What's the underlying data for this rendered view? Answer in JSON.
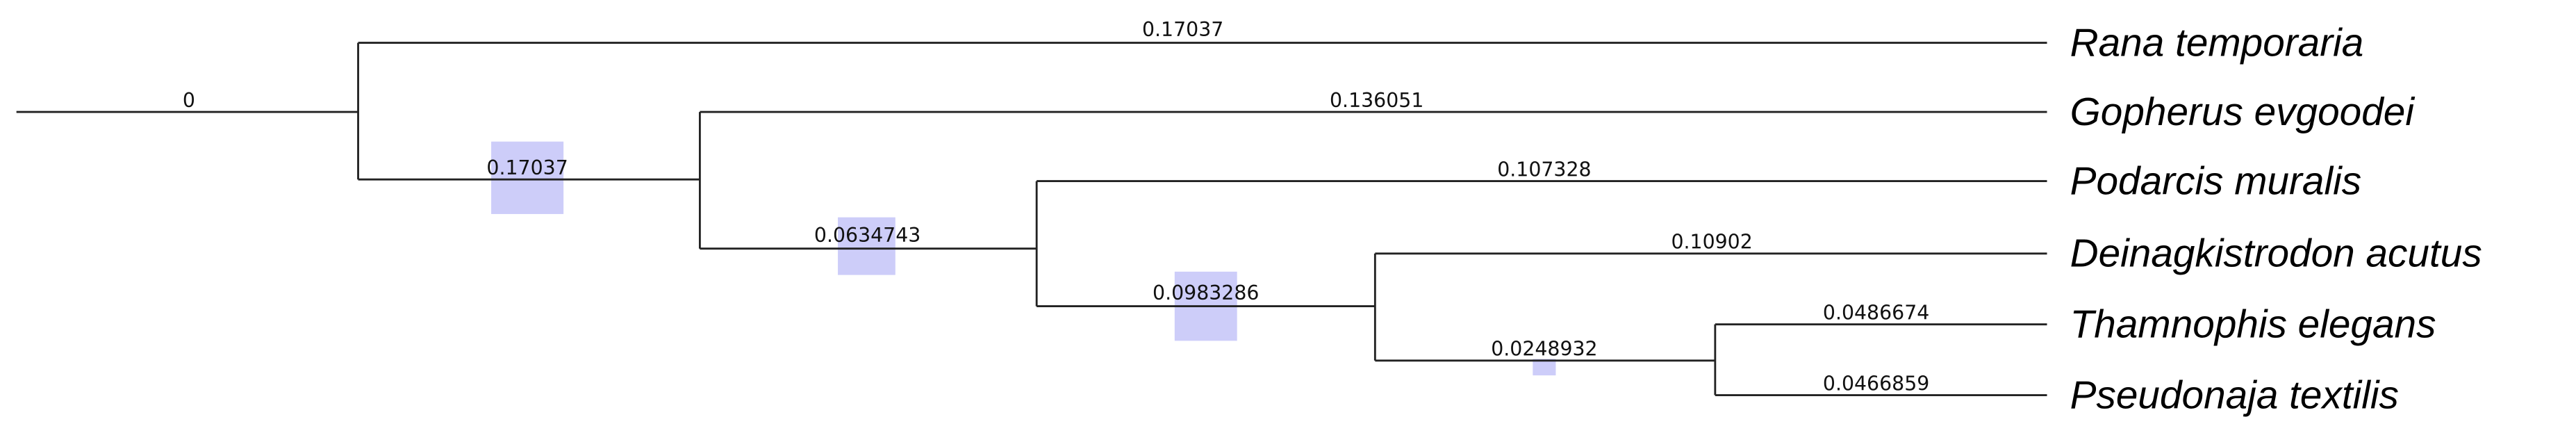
{
  "tree": {
    "taxa": [
      "Rana temporaria",
      "Gopherus evgoodei",
      "Podarcis muralis",
      "Deinagkistrodon acutus",
      "Thamnophis elegans",
      "Pseudonaja textilis"
    ],
    "branch_labels": {
      "root": "0",
      "rana": "0.17037",
      "clade_squamata_testudines": "0.17037",
      "gopherus": "0.136051",
      "clade_squamata": "0.0634743",
      "podarcis": "0.107328",
      "clade_serpentes": "0.0983286",
      "deinagkistrodon": "0.10902",
      "clade_colubroid": "0.0248932",
      "thamnophis": "0.0486674",
      "pseudonaja": "0.0466859"
    },
    "node_bar_color": "#c8c8f8",
    "branch_color": "#222222"
  }
}
